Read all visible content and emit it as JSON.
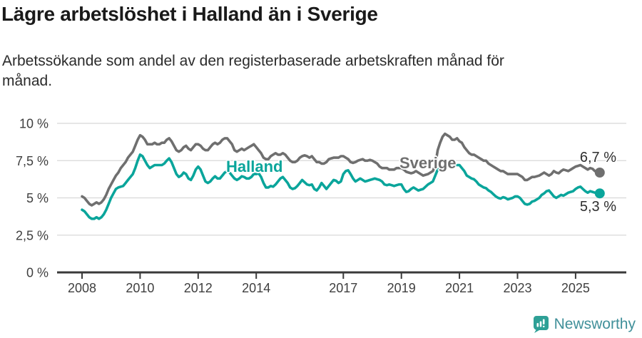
{
  "header": {
    "title": "Lägre arbetslöshet i Halland än i Sverige",
    "subtitle_lines": [
      "Arbetssökande som andel av den registerbaserade arbetskraften månad för",
      "månad."
    ]
  },
  "chart_data": {
    "type": "line",
    "x_unit": "month",
    "x_range": [
      "2008-01",
      "2025-11"
    ],
    "x_ticks": [
      2008,
      2010,
      2012,
      2014,
      2017,
      2019,
      2021,
      2023,
      2025
    ],
    "y_ticks": [
      0,
      2.5,
      5,
      7.5,
      10
    ],
    "y_tick_labels": [
      "0 %",
      "2,5 %",
      "5 %",
      "7,5 %",
      "10 %"
    ],
    "ylim": [
      0,
      10
    ],
    "grid": "horizontal",
    "legend": "inline-labels",
    "colors": {
      "axis": "#3a3a3a",
      "gridline": "#d8d8d8",
      "tick_text": "#3f3f3f"
    },
    "series": [
      {
        "name": "Sverige",
        "color": "#6f6f6f",
        "end_label": "6,7 %",
        "values": [
          5.1,
          5.0,
          4.8,
          4.6,
          4.5,
          4.6,
          4.7,
          4.6,
          4.7,
          4.9,
          5.2,
          5.6,
          5.9,
          6.2,
          6.5,
          6.7,
          7.0,
          7.2,
          7.4,
          7.7,
          7.9,
          8.1,
          8.5,
          8.9,
          9.2,
          9.1,
          8.9,
          8.6,
          8.6,
          8.6,
          8.7,
          8.6,
          8.6,
          8.7,
          8.7,
          8.9,
          9.0,
          8.8,
          8.5,
          8.2,
          8.1,
          8.2,
          8.4,
          8.5,
          8.3,
          8.2,
          8.4,
          8.6,
          8.6,
          8.5,
          8.3,
          8.2,
          8.2,
          8.4,
          8.6,
          8.7,
          8.6,
          8.7,
          8.9,
          9.0,
          9.0,
          8.8,
          8.6,
          8.2,
          8.1,
          8.2,
          8.3,
          8.2,
          8.3,
          8.4,
          8.5,
          8.6,
          8.4,
          8.2,
          8.0,
          7.7,
          7.6,
          7.6,
          7.8,
          7.9,
          8.0,
          7.9,
          7.9,
          8.0,
          7.9,
          7.7,
          7.5,
          7.4,
          7.4,
          7.5,
          7.7,
          7.8,
          7.85,
          7.8,
          7.7,
          7.8,
          7.6,
          7.4,
          7.4,
          7.3,
          7.3,
          7.4,
          7.6,
          7.65,
          7.7,
          7.7,
          7.7,
          7.8,
          7.8,
          7.7,
          7.6,
          7.4,
          7.35,
          7.4,
          7.5,
          7.55,
          7.6,
          7.5,
          7.5,
          7.55,
          7.5,
          7.4,
          7.3,
          7.1,
          7.0,
          7.0,
          7.0,
          6.9,
          6.9,
          6.9,
          7.0,
          7.0,
          7.0,
          6.9,
          6.75,
          6.7,
          6.65,
          6.7,
          6.8,
          6.7,
          6.6,
          6.5,
          6.55,
          6.6,
          6.7,
          6.8,
          7.2,
          8.2,
          8.7,
          9.1,
          9.3,
          9.2,
          9.1,
          8.9,
          8.9,
          9.0,
          8.8,
          8.7,
          8.4,
          8.2,
          8.0,
          7.9,
          7.9,
          7.8,
          7.7,
          7.6,
          7.5,
          7.5,
          7.3,
          7.2,
          7.1,
          7.0,
          6.9,
          6.8,
          6.8,
          6.7,
          6.6,
          6.6,
          6.6,
          6.6,
          6.6,
          6.5,
          6.4,
          6.2,
          6.2,
          6.3,
          6.4,
          6.4,
          6.45,
          6.5,
          6.6,
          6.7,
          6.6,
          6.5,
          6.6,
          6.8,
          6.7,
          6.65,
          6.8,
          6.9,
          6.85,
          6.8,
          6.9,
          7.0,
          7.1,
          7.15,
          7.2,
          7.1,
          7.0,
          6.9,
          7.0,
          6.95,
          6.8,
          6.75,
          6.7
        ]
      },
      {
        "name": "Halland",
        "color": "#0aa59b",
        "end_label": "5,3 %",
        "values": [
          4.2,
          4.1,
          3.9,
          3.7,
          3.6,
          3.6,
          3.7,
          3.6,
          3.7,
          3.9,
          4.2,
          4.6,
          5.0,
          5.3,
          5.6,
          5.7,
          5.75,
          5.8,
          6.0,
          6.2,
          6.4,
          6.6,
          7.0,
          7.5,
          7.9,
          7.8,
          7.5,
          7.2,
          7.0,
          7.1,
          7.2,
          7.2,
          7.2,
          7.2,
          7.3,
          7.5,
          7.65,
          7.4,
          7.0,
          6.6,
          6.4,
          6.5,
          6.7,
          6.6,
          6.3,
          6.2,
          6.5,
          6.9,
          7.1,
          6.9,
          6.5,
          6.1,
          6.0,
          6.1,
          6.3,
          6.45,
          6.3,
          6.3,
          6.5,
          6.7,
          6.8,
          6.7,
          6.5,
          6.3,
          6.2,
          6.3,
          6.45,
          6.4,
          6.3,
          6.3,
          6.4,
          6.6,
          6.6,
          6.65,
          6.4,
          6.0,
          5.7,
          5.7,
          5.8,
          5.75,
          5.9,
          6.1,
          6.3,
          6.4,
          6.2,
          6.0,
          5.7,
          5.6,
          5.65,
          5.8,
          6.0,
          6.2,
          6.05,
          5.9,
          5.85,
          5.9,
          5.6,
          5.5,
          5.7,
          6.0,
          5.8,
          5.6,
          5.8,
          6.0,
          6.2,
          6.15,
          6.0,
          6.1,
          6.6,
          6.8,
          6.85,
          6.6,
          6.3,
          6.1,
          6.2,
          6.3,
          6.2,
          6.1,
          6.15,
          6.2,
          6.25,
          6.3,
          6.25,
          6.2,
          6.1,
          5.9,
          5.85,
          5.9,
          5.85,
          5.8,
          5.85,
          5.9,
          5.9,
          5.6,
          5.4,
          5.45,
          5.6,
          5.7,
          5.6,
          5.5,
          5.55,
          5.6,
          5.75,
          5.9,
          6.0,
          6.1,
          6.5,
          6.9,
          7.0,
          7.05,
          7.2,
          7.15,
          7.2,
          7.1,
          7.15,
          7.2,
          7.2,
          7.0,
          6.8,
          6.5,
          6.4,
          6.3,
          6.25,
          6.1,
          5.9,
          5.8,
          5.7,
          5.65,
          5.5,
          5.4,
          5.25,
          5.1,
          5.0,
          4.95,
          5.05,
          5.0,
          4.9,
          4.95,
          5.0,
          5.1,
          5.1,
          5.0,
          4.8,
          4.6,
          4.55,
          4.6,
          4.75,
          4.8,
          4.9,
          5.0,
          5.2,
          5.3,
          5.45,
          5.5,
          5.3,
          5.1,
          5.0,
          5.1,
          5.2,
          5.15,
          5.25,
          5.35,
          5.4,
          5.45,
          5.6,
          5.7,
          5.75,
          5.6,
          5.45,
          5.35,
          5.45,
          5.4,
          5.35,
          5.3,
          5.3
        ]
      }
    ]
  },
  "footer": {
    "brand": "Newsworthy"
  }
}
